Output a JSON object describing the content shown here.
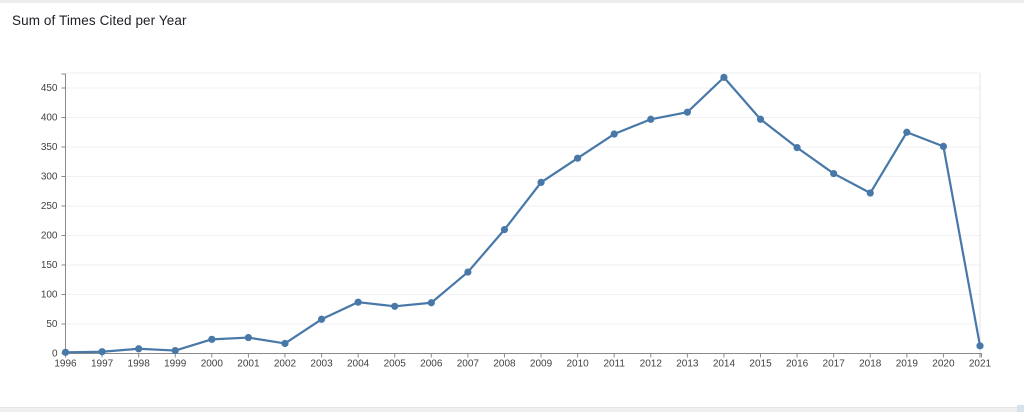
{
  "page": {
    "title": "Sum of Times Cited per Year"
  },
  "chart_data": {
    "type": "line",
    "title": "Sum of Times Cited per Year",
    "categories": [
      "1996",
      "1997",
      "1998",
      "1999",
      "2000",
      "2001",
      "2002",
      "2003",
      "2004",
      "2005",
      "2006",
      "2007",
      "2008",
      "2009",
      "2010",
      "2011",
      "2012",
      "2013",
      "2014",
      "2015",
      "2016",
      "2017",
      "2018",
      "2019",
      "2020",
      "2021"
    ],
    "values": [
      2,
      3,
      8,
      5,
      24,
      27,
      17,
      58,
      87,
      80,
      86,
      138,
      210,
      290,
      331,
      372,
      397,
      409,
      468,
      397,
      349,
      305,
      272,
      375,
      351,
      13
    ],
    "xlabel": "",
    "ylabel": "",
    "ylim": [
      0,
      450
    ],
    "y_ticks": [
      0,
      50,
      100,
      150,
      200,
      250,
      300,
      350,
      400,
      450
    ],
    "grid": true,
    "legend": "none",
    "colors": {
      "line": "#4878a8",
      "marker": "#4878a8",
      "axis": "#8a8a8a",
      "tick_label": "#424242",
      "grid_line": "#f1f1f4",
      "plot_border": "#e4e4e8"
    }
  }
}
